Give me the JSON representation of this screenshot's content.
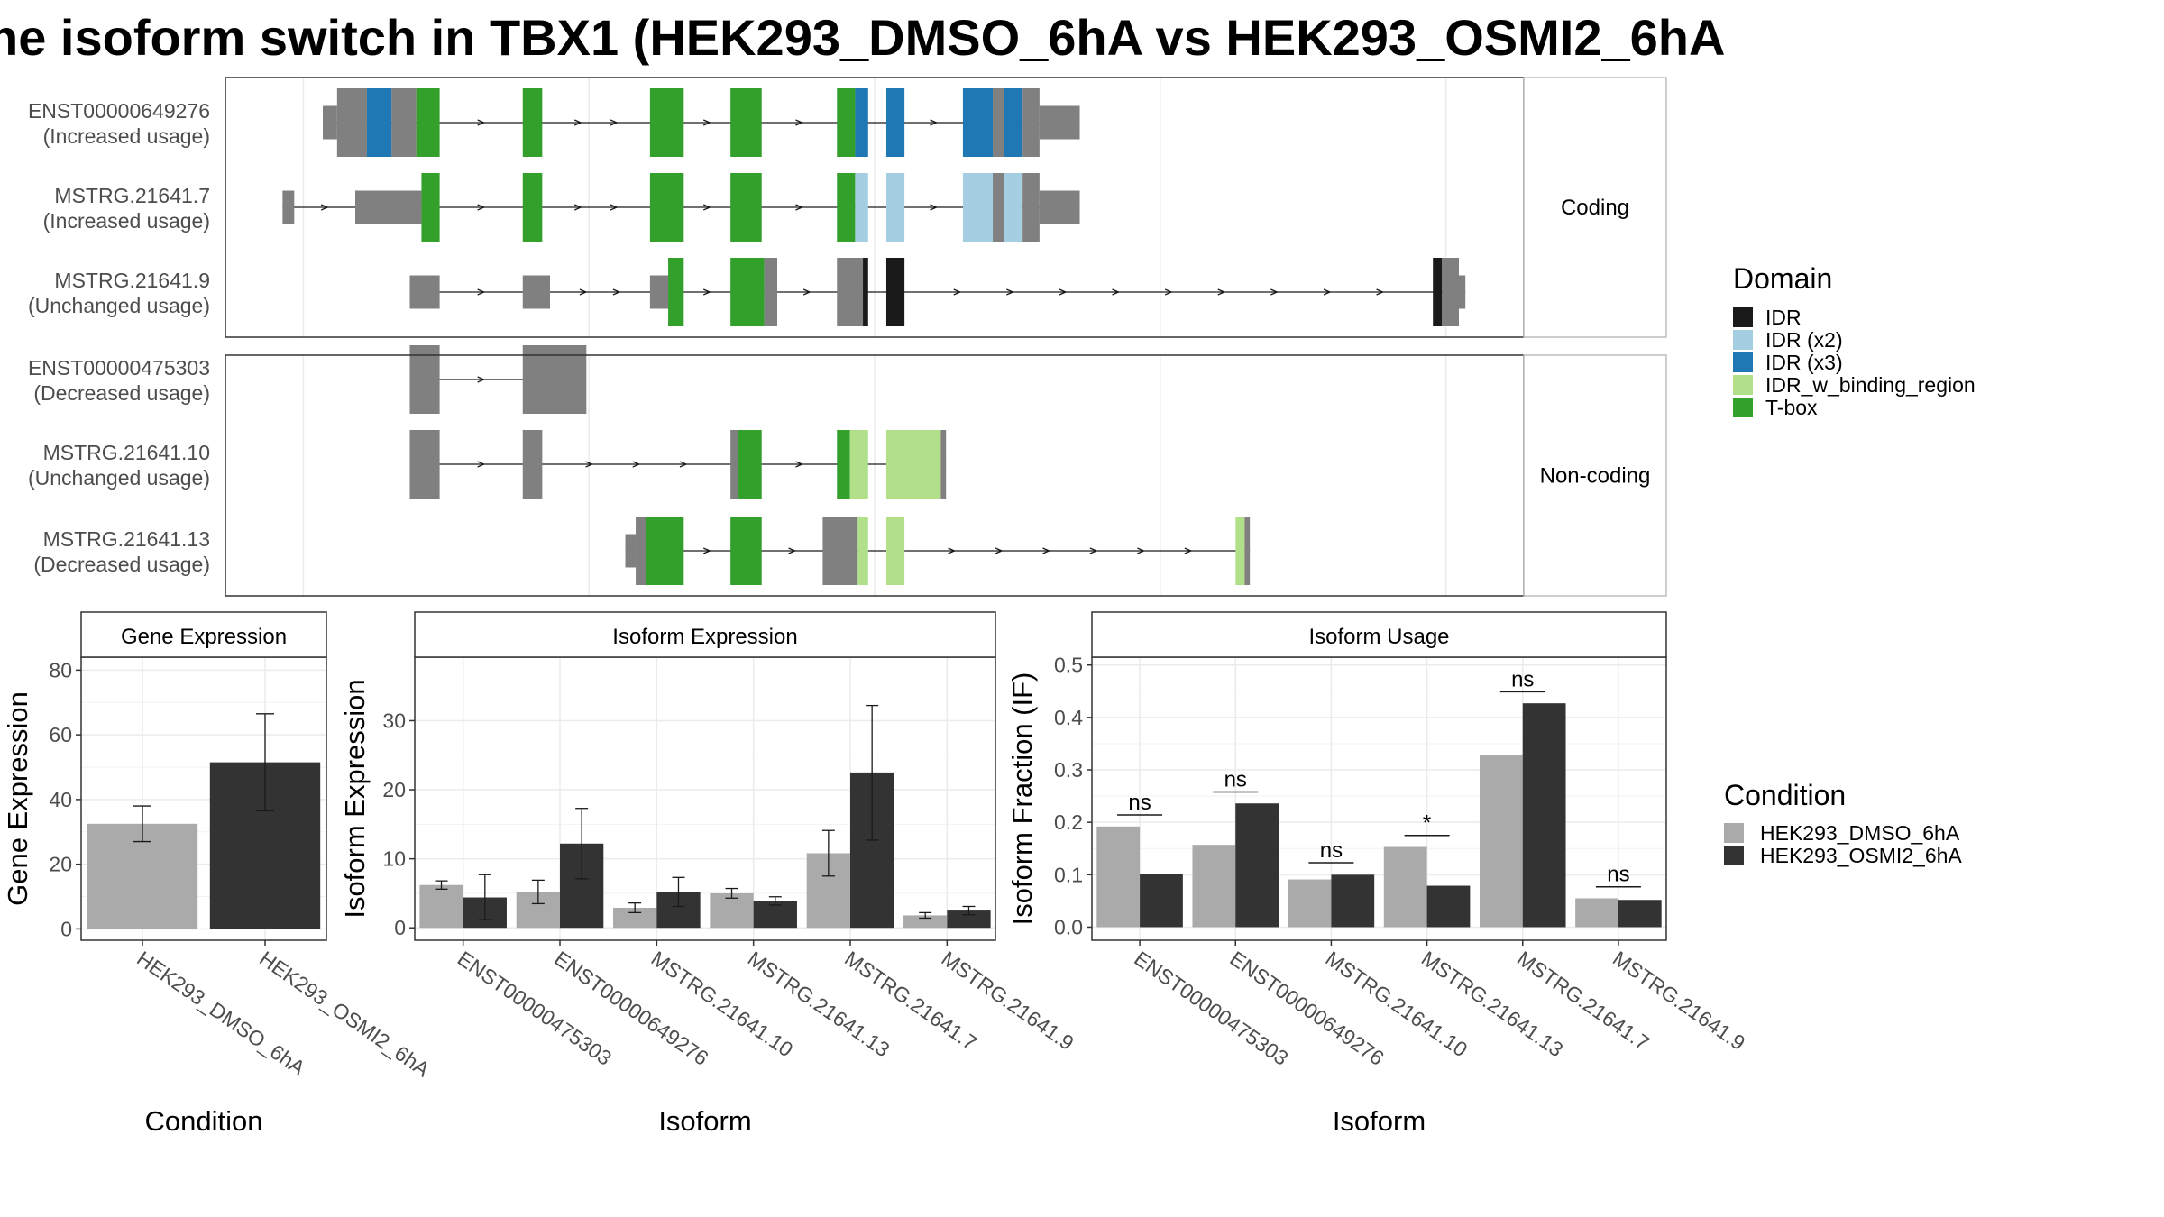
{
  "title": "he isoform switch in TBX1 (HEK293_DMSO_6hA vs HEK293_OSMI2_6hA",
  "colors": {
    "IDR": "#1a1a1a",
    "IDR (x2)": "#a6cee3",
    "IDR (x3)": "#1f78b4",
    "IDR_w_binding_region": "#b2df8a",
    "T-box": "#33a02c",
    "none": "#808080",
    "dmso": "#aaaaaa",
    "osmi": "#333333"
  },
  "structure": {
    "facets": [
      "Coding",
      "Non-coding"
    ],
    "transcripts": [
      {
        "label1": "ENST00000649276",
        "label2": "(Increased usage)",
        "facet": "Coding",
        "segments": [
          {
            "s": 0.075,
            "e": 0.086,
            "h": "utr",
            "d": "none"
          },
          {
            "s": 0.086,
            "e": 0.109,
            "h": "cds",
            "d": "none"
          },
          {
            "s": 0.109,
            "e": 0.128,
            "h": "cds",
            "d": "IDR (x3)"
          },
          {
            "s": 0.128,
            "e": 0.147,
            "h": "cds",
            "d": "none"
          },
          {
            "s": 0.147,
            "e": 0.165,
            "h": "cds",
            "d": "T-box"
          },
          {
            "s": 0.229,
            "e": 0.244,
            "h": "cds",
            "d": "T-box"
          },
          {
            "s": 0.327,
            "e": 0.353,
            "h": "cds",
            "d": "T-box"
          },
          {
            "s": 0.389,
            "e": 0.413,
            "h": "cds",
            "d": "T-box"
          },
          {
            "s": 0.471,
            "e": 0.485,
            "h": "cds",
            "d": "T-box"
          },
          {
            "s": 0.485,
            "e": 0.495,
            "h": "cds",
            "d": "IDR (x3)"
          },
          {
            "s": 0.509,
            "e": 0.523,
            "h": "cds",
            "d": "IDR (x3)"
          },
          {
            "s": 0.568,
            "e": 0.591,
            "h": "cds",
            "d": "IDR (x3)"
          },
          {
            "s": 0.591,
            "e": 0.6,
            "h": "cds",
            "d": "none"
          },
          {
            "s": 0.6,
            "e": 0.614,
            "h": "cds",
            "d": "IDR (x3)"
          },
          {
            "s": 0.614,
            "e": 0.627,
            "h": "cds",
            "d": "none"
          },
          {
            "s": 0.627,
            "e": 0.658,
            "h": "utr",
            "d": "none"
          }
        ]
      },
      {
        "label1": "MSTRG.21641.7",
        "label2": "(Increased usage)",
        "facet": "Coding",
        "segments": [
          {
            "s": 0.044,
            "e": 0.053,
            "h": "utr",
            "d": "none"
          },
          {
            "s": 0.1,
            "e": 0.151,
            "h": "utr",
            "d": "none"
          },
          {
            "s": 0.151,
            "e": 0.165,
            "h": "cds",
            "d": "T-box"
          },
          {
            "s": 0.229,
            "e": 0.244,
            "h": "cds",
            "d": "T-box"
          },
          {
            "s": 0.327,
            "e": 0.353,
            "h": "cds",
            "d": "T-box"
          },
          {
            "s": 0.389,
            "e": 0.413,
            "h": "cds",
            "d": "T-box"
          },
          {
            "s": 0.471,
            "e": 0.485,
            "h": "cds",
            "d": "T-box"
          },
          {
            "s": 0.485,
            "e": 0.495,
            "h": "cds",
            "d": "IDR (x2)"
          },
          {
            "s": 0.509,
            "e": 0.523,
            "h": "cds",
            "d": "IDR (x2)"
          },
          {
            "s": 0.568,
            "e": 0.591,
            "h": "cds",
            "d": "IDR (x2)"
          },
          {
            "s": 0.591,
            "e": 0.6,
            "h": "cds",
            "d": "none"
          },
          {
            "s": 0.6,
            "e": 0.614,
            "h": "cds",
            "d": "IDR (x2)"
          },
          {
            "s": 0.614,
            "e": 0.627,
            "h": "cds",
            "d": "none"
          },
          {
            "s": 0.627,
            "e": 0.658,
            "h": "utr",
            "d": "none"
          }
        ]
      },
      {
        "label1": "MSTRG.21641.9",
        "label2": "(Unchanged usage)",
        "facet": "Coding",
        "segments": [
          {
            "s": 0.142,
            "e": 0.165,
            "h": "utr",
            "d": "none"
          },
          {
            "s": 0.229,
            "e": 0.25,
            "h": "utr",
            "d": "none"
          },
          {
            "s": 0.327,
            "e": 0.341,
            "h": "utr",
            "d": "none"
          },
          {
            "s": 0.341,
            "e": 0.353,
            "h": "cds",
            "d": "T-box"
          },
          {
            "s": 0.389,
            "e": 0.415,
            "h": "cds",
            "d": "T-box"
          },
          {
            "s": 0.415,
            "e": 0.425,
            "h": "cds",
            "d": "none"
          },
          {
            "s": 0.471,
            "e": 0.491,
            "h": "cds",
            "d": "none"
          },
          {
            "s": 0.491,
            "e": 0.495,
            "h": "cds",
            "d": "IDR"
          },
          {
            "s": 0.509,
            "e": 0.523,
            "h": "cds",
            "d": "IDR"
          },
          {
            "s": 0.93,
            "e": 0.937,
            "h": "cds",
            "d": "IDR"
          },
          {
            "s": 0.937,
            "e": 0.95,
            "h": "cds",
            "d": "none"
          },
          {
            "s": 0.95,
            "e": 0.955,
            "h": "utr",
            "d": "none"
          }
        ]
      },
      {
        "label1": "ENST00000475303",
        "label2": "(Decreased usage)",
        "facet": "Non-coding",
        "segments": [
          {
            "s": 0.142,
            "e": 0.165,
            "h": "cds",
            "d": "none"
          },
          {
            "s": 0.229,
            "e": 0.278,
            "h": "cds",
            "d": "none"
          }
        ]
      },
      {
        "label1": "MSTRG.21641.10",
        "label2": "(Unchanged usage)",
        "facet": "Non-coding",
        "segments": [
          {
            "s": 0.142,
            "e": 0.165,
            "h": "cds",
            "d": "none"
          },
          {
            "s": 0.229,
            "e": 0.244,
            "h": "cds",
            "d": "none"
          },
          {
            "s": 0.389,
            "e": 0.395,
            "h": "cds",
            "d": "none"
          },
          {
            "s": 0.395,
            "e": 0.413,
            "h": "cds",
            "d": "T-box"
          },
          {
            "s": 0.471,
            "e": 0.481,
            "h": "cds",
            "d": "T-box"
          },
          {
            "s": 0.481,
            "e": 0.495,
            "h": "cds",
            "d": "IDR_w_binding_region"
          },
          {
            "s": 0.509,
            "e": 0.551,
            "h": "cds",
            "d": "IDR_w_binding_region"
          },
          {
            "s": 0.551,
            "e": 0.555,
            "h": "cds",
            "d": "none"
          }
        ]
      },
      {
        "label1": "MSTRG.21641.13",
        "label2": "(Decreased usage)",
        "facet": "Non-coding",
        "segments": [
          {
            "s": 0.308,
            "e": 0.316,
            "h": "utr",
            "d": "none"
          },
          {
            "s": 0.316,
            "e": 0.324,
            "h": "cds",
            "d": "none"
          },
          {
            "s": 0.324,
            "e": 0.353,
            "h": "cds",
            "d": "T-box"
          },
          {
            "s": 0.389,
            "e": 0.413,
            "h": "cds",
            "d": "T-box"
          },
          {
            "s": 0.46,
            "e": 0.487,
            "h": "cds",
            "d": "none"
          },
          {
            "s": 0.487,
            "e": 0.495,
            "h": "cds",
            "d": "IDR_w_binding_region"
          },
          {
            "s": 0.509,
            "e": 0.523,
            "h": "cds",
            "d": "IDR_w_binding_region"
          },
          {
            "s": 0.778,
            "e": 0.785,
            "h": "cds",
            "d": "IDR_w_binding_region"
          },
          {
            "s": 0.785,
            "e": 0.789,
            "h": "cds",
            "d": "none"
          }
        ]
      }
    ]
  },
  "domain_legend": {
    "title": "Domain",
    "entries": [
      "IDR",
      "IDR (x2)",
      "IDR (x3)",
      "IDR_w_binding_region",
      "T-box"
    ]
  },
  "condition_legend": {
    "title": "Condition",
    "entries": [
      "HEK293_DMSO_6hA",
      "HEK293_OSMI2_6hA"
    ]
  },
  "chart_data": [
    {
      "type": "bar",
      "title": "Gene Expression",
      "xlabel": "Condition",
      "ylabel": "Gene Expression",
      "categories": [
        "HEK293_DMSO_6hA",
        "HEK293_OSMI2_6hA"
      ],
      "values": [
        32.5,
        51.5
      ],
      "error": [
        [
          27.0,
          38.0
        ],
        [
          36.5,
          66.5
        ]
      ],
      "ylim": [
        -3.5,
        84
      ],
      "yticks": [
        0,
        20,
        40,
        60,
        80
      ]
    },
    {
      "type": "bar",
      "title": "Isoform Expression",
      "xlabel": "Isoform",
      "ylabel": "Isoform Expression",
      "categories": [
        "ENST00000475303",
        "ENST00000649276",
        "MSTRG.21641.10",
        "MSTRG.21641.13",
        "MSTRG.21641.7",
        "MSTRG.21641.9"
      ],
      "series": [
        {
          "name": "HEK293_DMSO_6hA",
          "values": [
            6.2,
            5.2,
            2.9,
            5.0,
            10.8,
            1.8
          ],
          "error": [
            [
              5.6,
              6.8
            ],
            [
              3.5,
              6.9
            ],
            [
              2.2,
              3.6
            ],
            [
              4.3,
              5.7
            ],
            [
              7.5,
              14.1
            ],
            [
              1.4,
              2.2
            ]
          ]
        },
        {
          "name": "HEK293_OSMI2_6hA",
          "values": [
            4.4,
            12.2,
            5.2,
            3.9,
            22.5,
            2.5
          ],
          "error": [
            [
              1.2,
              7.7
            ],
            [
              7.1,
              17.3
            ],
            [
              3.1,
              7.3
            ],
            [
              3.3,
              4.5
            ],
            [
              12.7,
              32.2
            ],
            [
              1.9,
              3.1
            ]
          ]
        }
      ],
      "ylim": [
        -1.8,
        39.2
      ],
      "yticks": [
        0,
        10,
        20,
        30
      ]
    },
    {
      "type": "bar",
      "title": "Isoform Usage",
      "xlabel": "Isoform",
      "ylabel": "Isoform Fraction (IF)",
      "categories": [
        "ENST00000475303",
        "ENST00000649276",
        "MSTRG.21641.10",
        "MSTRG.21641.13",
        "MSTRG.21641.7",
        "MSTRG.21641.9"
      ],
      "series": [
        {
          "name": "HEK293_DMSO_6hA",
          "values": [
            0.192,
            0.157,
            0.091,
            0.153,
            0.328,
            0.055
          ]
        },
        {
          "name": "HEK293_OSMI2_6hA",
          "values": [
            0.102,
            0.236,
            0.1,
            0.079,
            0.427,
            0.052
          ]
        }
      ],
      "significance": [
        {
          "label": "ns",
          "y": 0.214
        },
        {
          "label": "ns",
          "y": 0.258
        },
        {
          "label": "ns",
          "y": 0.123
        },
        {
          "label": "*",
          "y": 0.175
        },
        {
          "label": "ns",
          "y": 0.449
        },
        {
          "label": "ns",
          "y": 0.077
        }
      ],
      "ylim": [
        -0.025,
        0.515
      ],
      "yticks": [
        0.0,
        0.1,
        0.2,
        0.3,
        0.4,
        0.5
      ],
      "ytick_labels": [
        "0.0",
        "0.1",
        "0.2",
        "0.3",
        "0.4",
        "0.5"
      ]
    }
  ]
}
